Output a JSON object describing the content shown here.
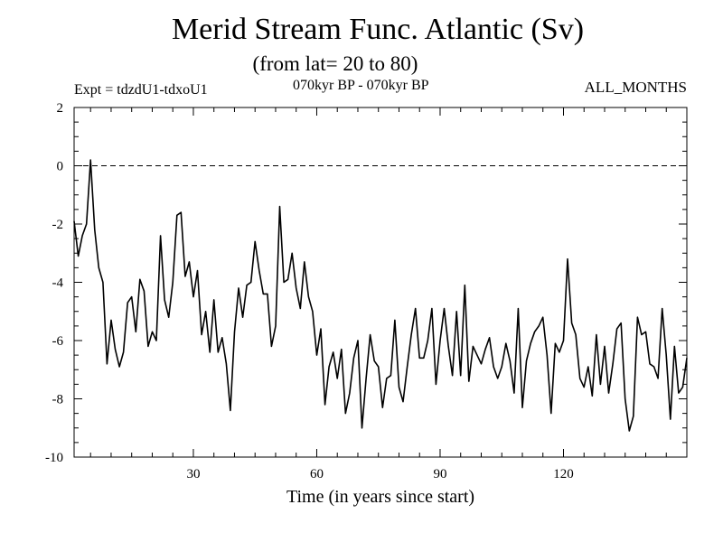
{
  "chart_data": {
    "type": "line",
    "title": "Merid Stream Func. Atlantic (Sv)",
    "subtitle": "(from lat= 20 to 80)",
    "expt_label": "Expt = tdzdU1-tdxoU1",
    "period_label": "070kyr BP - 070kyr BP",
    "months_label": "ALL_MONTHS",
    "xlabel": "Time (in years since start)",
    "ylabel": "",
    "xlim": [
      1,
      150
    ],
    "ylim": [
      -10,
      2
    ],
    "xticks": [
      30,
      60,
      90,
      120
    ],
    "yticks": [
      2,
      0,
      -2,
      -4,
      -6,
      -8,
      -10
    ],
    "reference_line": 0,
    "series": [
      {
        "name": "Merid Stream Func. Atlantic",
        "x": [
          1,
          2,
          3,
          4,
          5,
          6,
          7,
          8,
          9,
          10,
          11,
          12,
          13,
          14,
          15,
          16,
          17,
          18,
          19,
          20,
          21,
          22,
          23,
          24,
          25,
          26,
          27,
          28,
          29,
          30,
          31,
          32,
          33,
          34,
          35,
          36,
          37,
          38,
          39,
          40,
          41,
          42,
          43,
          44,
          45,
          46,
          47,
          48,
          49,
          50,
          51,
          52,
          53,
          54,
          55,
          56,
          57,
          58,
          59,
          60,
          61,
          62,
          63,
          64,
          65,
          66,
          67,
          68,
          69,
          70,
          71,
          72,
          73,
          74,
          75,
          76,
          77,
          78,
          79,
          80,
          81,
          82,
          83,
          84,
          85,
          86,
          87,
          88,
          89,
          90,
          91,
          92,
          93,
          94,
          95,
          96,
          97,
          98,
          99,
          100,
          101,
          102,
          103,
          104,
          105,
          106,
          107,
          108,
          109,
          110,
          111,
          112,
          113,
          114,
          115,
          116,
          117,
          118,
          119,
          120,
          121,
          122,
          123,
          124,
          125,
          126,
          127,
          128,
          129,
          130,
          131,
          132,
          133,
          134,
          135,
          136,
          137,
          138,
          139,
          140,
          141,
          142,
          143,
          144,
          145,
          146,
          147,
          148,
          149,
          150
        ],
        "values": [
          -1.9,
          -3.1,
          -2.4,
          -2.0,
          0.2,
          -2.2,
          -3.5,
          -4.0,
          -6.8,
          -5.3,
          -6.3,
          -6.9,
          -6.4,
          -4.7,
          -4.5,
          -5.7,
          -3.9,
          -4.3,
          -6.2,
          -5.7,
          -6.0,
          -2.4,
          -4.6,
          -5.2,
          -4.0,
          -1.7,
          -1.6,
          -3.8,
          -3.3,
          -4.5,
          -3.6,
          -5.8,
          -5.0,
          -6.4,
          -4.6,
          -6.4,
          -5.9,
          -6.8,
          -8.4,
          -5.7,
          -4.2,
          -5.2,
          -4.1,
          -4.0,
          -2.6,
          -3.6,
          -4.4,
          -4.4,
          -6.2,
          -5.5,
          -1.4,
          -4.0,
          -3.9,
          -3.0,
          -4.2,
          -4.9,
          -3.3,
          -4.5,
          -5.0,
          -6.5,
          -5.6,
          -8.2,
          -6.9,
          -6.4,
          -7.3,
          -6.3,
          -8.5,
          -7.8,
          -6.6,
          -6.0,
          -9.0,
          -7.3,
          -5.8,
          -6.7,
          -6.9,
          -8.3,
          -7.3,
          -7.2,
          -5.3,
          -7.6,
          -8.1,
          -6.9,
          -5.8,
          -4.9,
          -6.6,
          -6.6,
          -6.0,
          -4.9,
          -7.5,
          -6.0,
          -4.9,
          -6.2,
          -7.2,
          -5.0,
          -7.2,
          -4.1,
          -7.4,
          -6.2,
          -6.5,
          -6.8,
          -6.3,
          -5.9,
          -6.9,
          -7.3,
          -6.9,
          -6.1,
          -6.7,
          -7.8,
          -4.9,
          -8.3,
          -6.7,
          -6.1,
          -5.7,
          -5.5,
          -5.2,
          -6.5,
          -8.5,
          -6.1,
          -6.4,
          -6.0,
          -3.2,
          -5.4,
          -5.8,
          -7.3,
          -7.6,
          -6.9,
          -7.9,
          -5.8,
          -7.5,
          -6.2,
          -7.8,
          -6.8,
          -5.6,
          -5.4,
          -8.0,
          -9.1,
          -8.6,
          -5.2,
          -5.8,
          -5.7,
          -6.8,
          -6.9,
          -7.3,
          -4.9,
          -6.5,
          -8.7,
          -6.2,
          -7.8,
          -7.6,
          -6.6
        ]
      }
    ]
  }
}
